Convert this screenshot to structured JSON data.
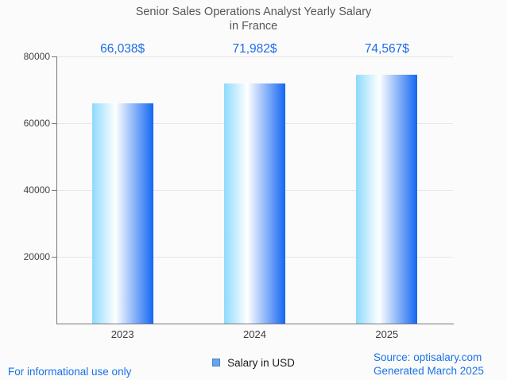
{
  "title": {
    "line1": "Senior Sales Operations Analyst Yearly Salary",
    "line2": "in France"
  },
  "chart_data": {
    "type": "bar",
    "title": "Senior Sales Operations Analyst Yearly Salary in France",
    "categories": [
      "2023",
      "2024",
      "2025"
    ],
    "values": [
      66038,
      71982,
      74567
    ],
    "value_labels": [
      "66,038$",
      "71,982$",
      "74,567$"
    ],
    "series": [
      {
        "name": "Salary in USD",
        "values": [
          66038,
          71982,
          74567
        ]
      }
    ],
    "xlabel": "",
    "ylabel": "",
    "ylim": [
      0,
      80000
    ],
    "yticks": [
      20000,
      40000,
      60000,
      80000
    ],
    "ytick_labels": [
      "20000",
      "40000",
      "60000",
      "80000"
    ],
    "grid": true,
    "legend_position": "bottom"
  },
  "legend": {
    "label": "Salary in USD"
  },
  "footer": {
    "disclaimer": "For informational use only",
    "source": "Source: optisalary.com",
    "generated": "Generated March 2025"
  },
  "colors": {
    "value_label": "#1f6ce8",
    "footer_link": "#1a73e8",
    "bar_gradient_left": "#8edafb",
    "bar_gradient_right": "#1467f2",
    "legend_marker_fill": "#6ba4e7",
    "legend_marker_border": "#4083cb",
    "gridline": "#e6e6e6",
    "axis_line": "#787878",
    "title_text": "#57575a",
    "tick_text": "#424242"
  }
}
